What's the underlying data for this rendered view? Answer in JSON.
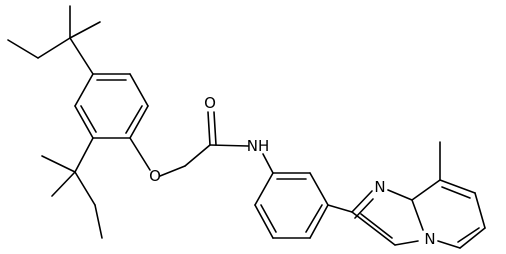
{
  "atoms": [
    {
      "label": "O"
    },
    {
      "label": "O"
    },
    {
      "label": "NH"
    },
    {
      "label": "N"
    },
    {
      "label": "N"
    }
  ]
}
